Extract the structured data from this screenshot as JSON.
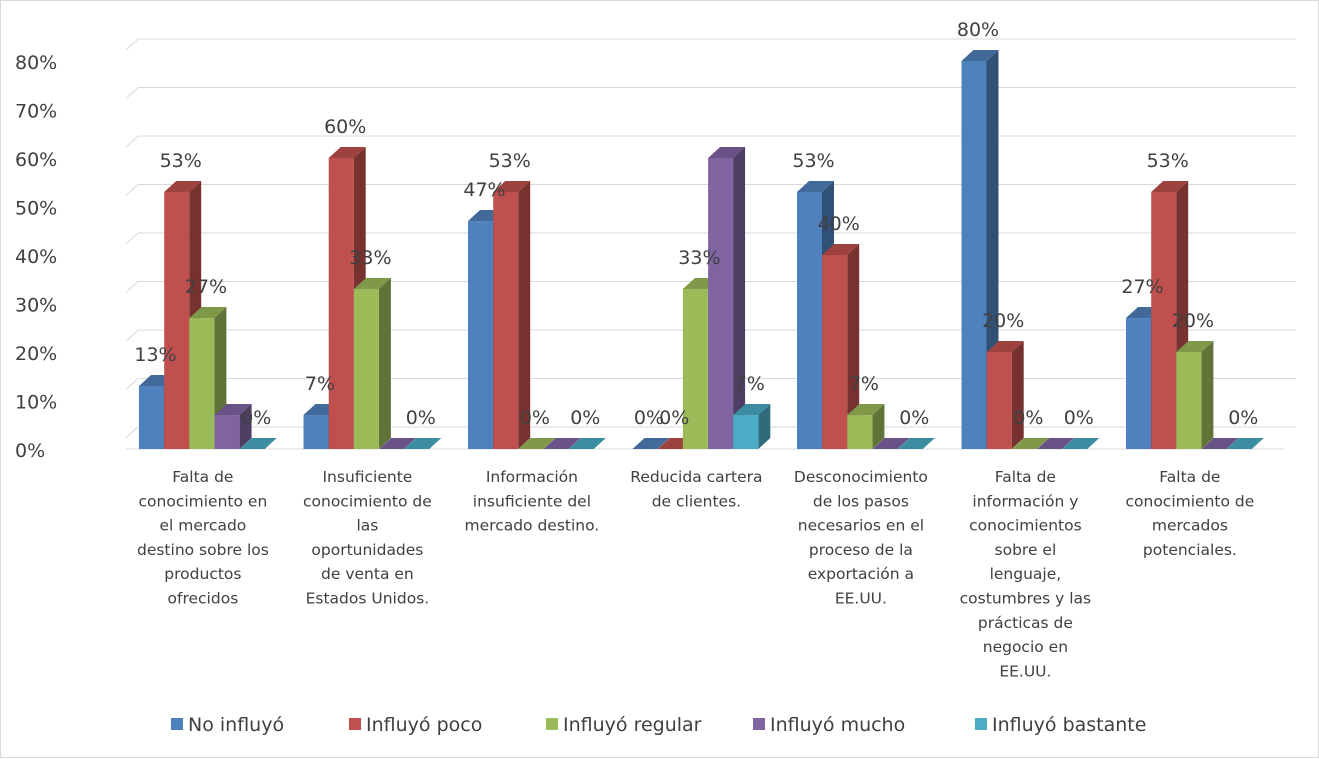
{
  "chart_data": {
    "type": "bar",
    "title": "",
    "xlabel": "",
    "ylabel": "",
    "ylim": [
      0,
      80
    ],
    "y_ticks": [
      "0%",
      "10%",
      "20%",
      "30%",
      "40%",
      "50%",
      "60%",
      "70%",
      "80%"
    ],
    "grid": true,
    "legend_position": "bottom",
    "categories": [
      "Falta de conocimiento en el mercado destino sobre los productos ofrecidos",
      "Insuficiente conocimiento de las oportunidades de venta en Estados Unidos.",
      "Información insuficiente del mercado destino.",
      "Reducida cartera de clientes.",
      "Desconocimiento de los pasos necesarios en el proceso de la exportación a EE.UU.",
      "Falta de información y conocimientos sobre el lenguaje, costumbres y las prácticas de negocio en EE.UU.",
      "Falta de conocimiento de mercados potenciales."
    ],
    "category_lines": [
      [
        "Falta de",
        "conocimiento en",
        "el mercado",
        "destino sobre los",
        "productos",
        "ofrecidos"
      ],
      [
        "Insuficiente",
        "conocimiento de",
        "las",
        "oportunidades",
        "de venta en",
        "Estados Unidos."
      ],
      [
        "Información",
        "insuficiente del",
        "mercado destino."
      ],
      [
        "Reducida cartera",
        "de clientes."
      ],
      [
        "Desconocimiento",
        "de los pasos",
        "necesarios en el",
        "proceso de la",
        "exportación a",
        "EE.UU."
      ],
      [
        "Falta de",
        "información y",
        "conocimientos",
        "sobre el",
        "lenguaje,",
        "costumbres y las",
        "prácticas de",
        "negocio en",
        "EE.UU."
      ],
      [
        "Falta de",
        "conocimiento de",
        "mercados",
        "potenciales."
      ]
    ],
    "series": [
      {
        "name": "No influyó",
        "color": "#4f81bd",
        "values": [
          13,
          7,
          47,
          0,
          53,
          80,
          27
        ]
      },
      {
        "name": "Influyó poco",
        "color": "#c0504d",
        "values": [
          53,
          60,
          53,
          0,
          40,
          20,
          53
        ]
      },
      {
        "name": "Influyó regular",
        "color": "#9bbb59",
        "values": [
          27,
          33,
          0,
          33,
          7,
          0,
          20
        ]
      },
      {
        "name": "Influyó mucho",
        "color": "#8064a2",
        "values": [
          7,
          0,
          0,
          60,
          0,
          0,
          0
        ]
      },
      {
        "name": "Influyó bastante",
        "color": "#4bacc6",
        "values": [
          0,
          0,
          0,
          7,
          0,
          0,
          0
        ]
      }
    ],
    "data_labels": [
      [
        "13%",
        "53%",
        "27%",
        "",
        "0%"
      ],
      [
        "7%",
        "60%",
        "33%",
        "",
        "0%"
      ],
      [
        "47%",
        "53%",
        "0%",
        "",
        "0%"
      ],
      [
        "0%",
        "0%",
        "33%",
        "",
        "7%"
      ],
      [
        "53%",
        "40%",
        "7%",
        "",
        "0%"
      ],
      [
        "80%",
        "20%",
        "0%",
        "",
        "0%"
      ],
      [
        "27%",
        "53%",
        "20%",
        "",
        "0%"
      ]
    ]
  }
}
